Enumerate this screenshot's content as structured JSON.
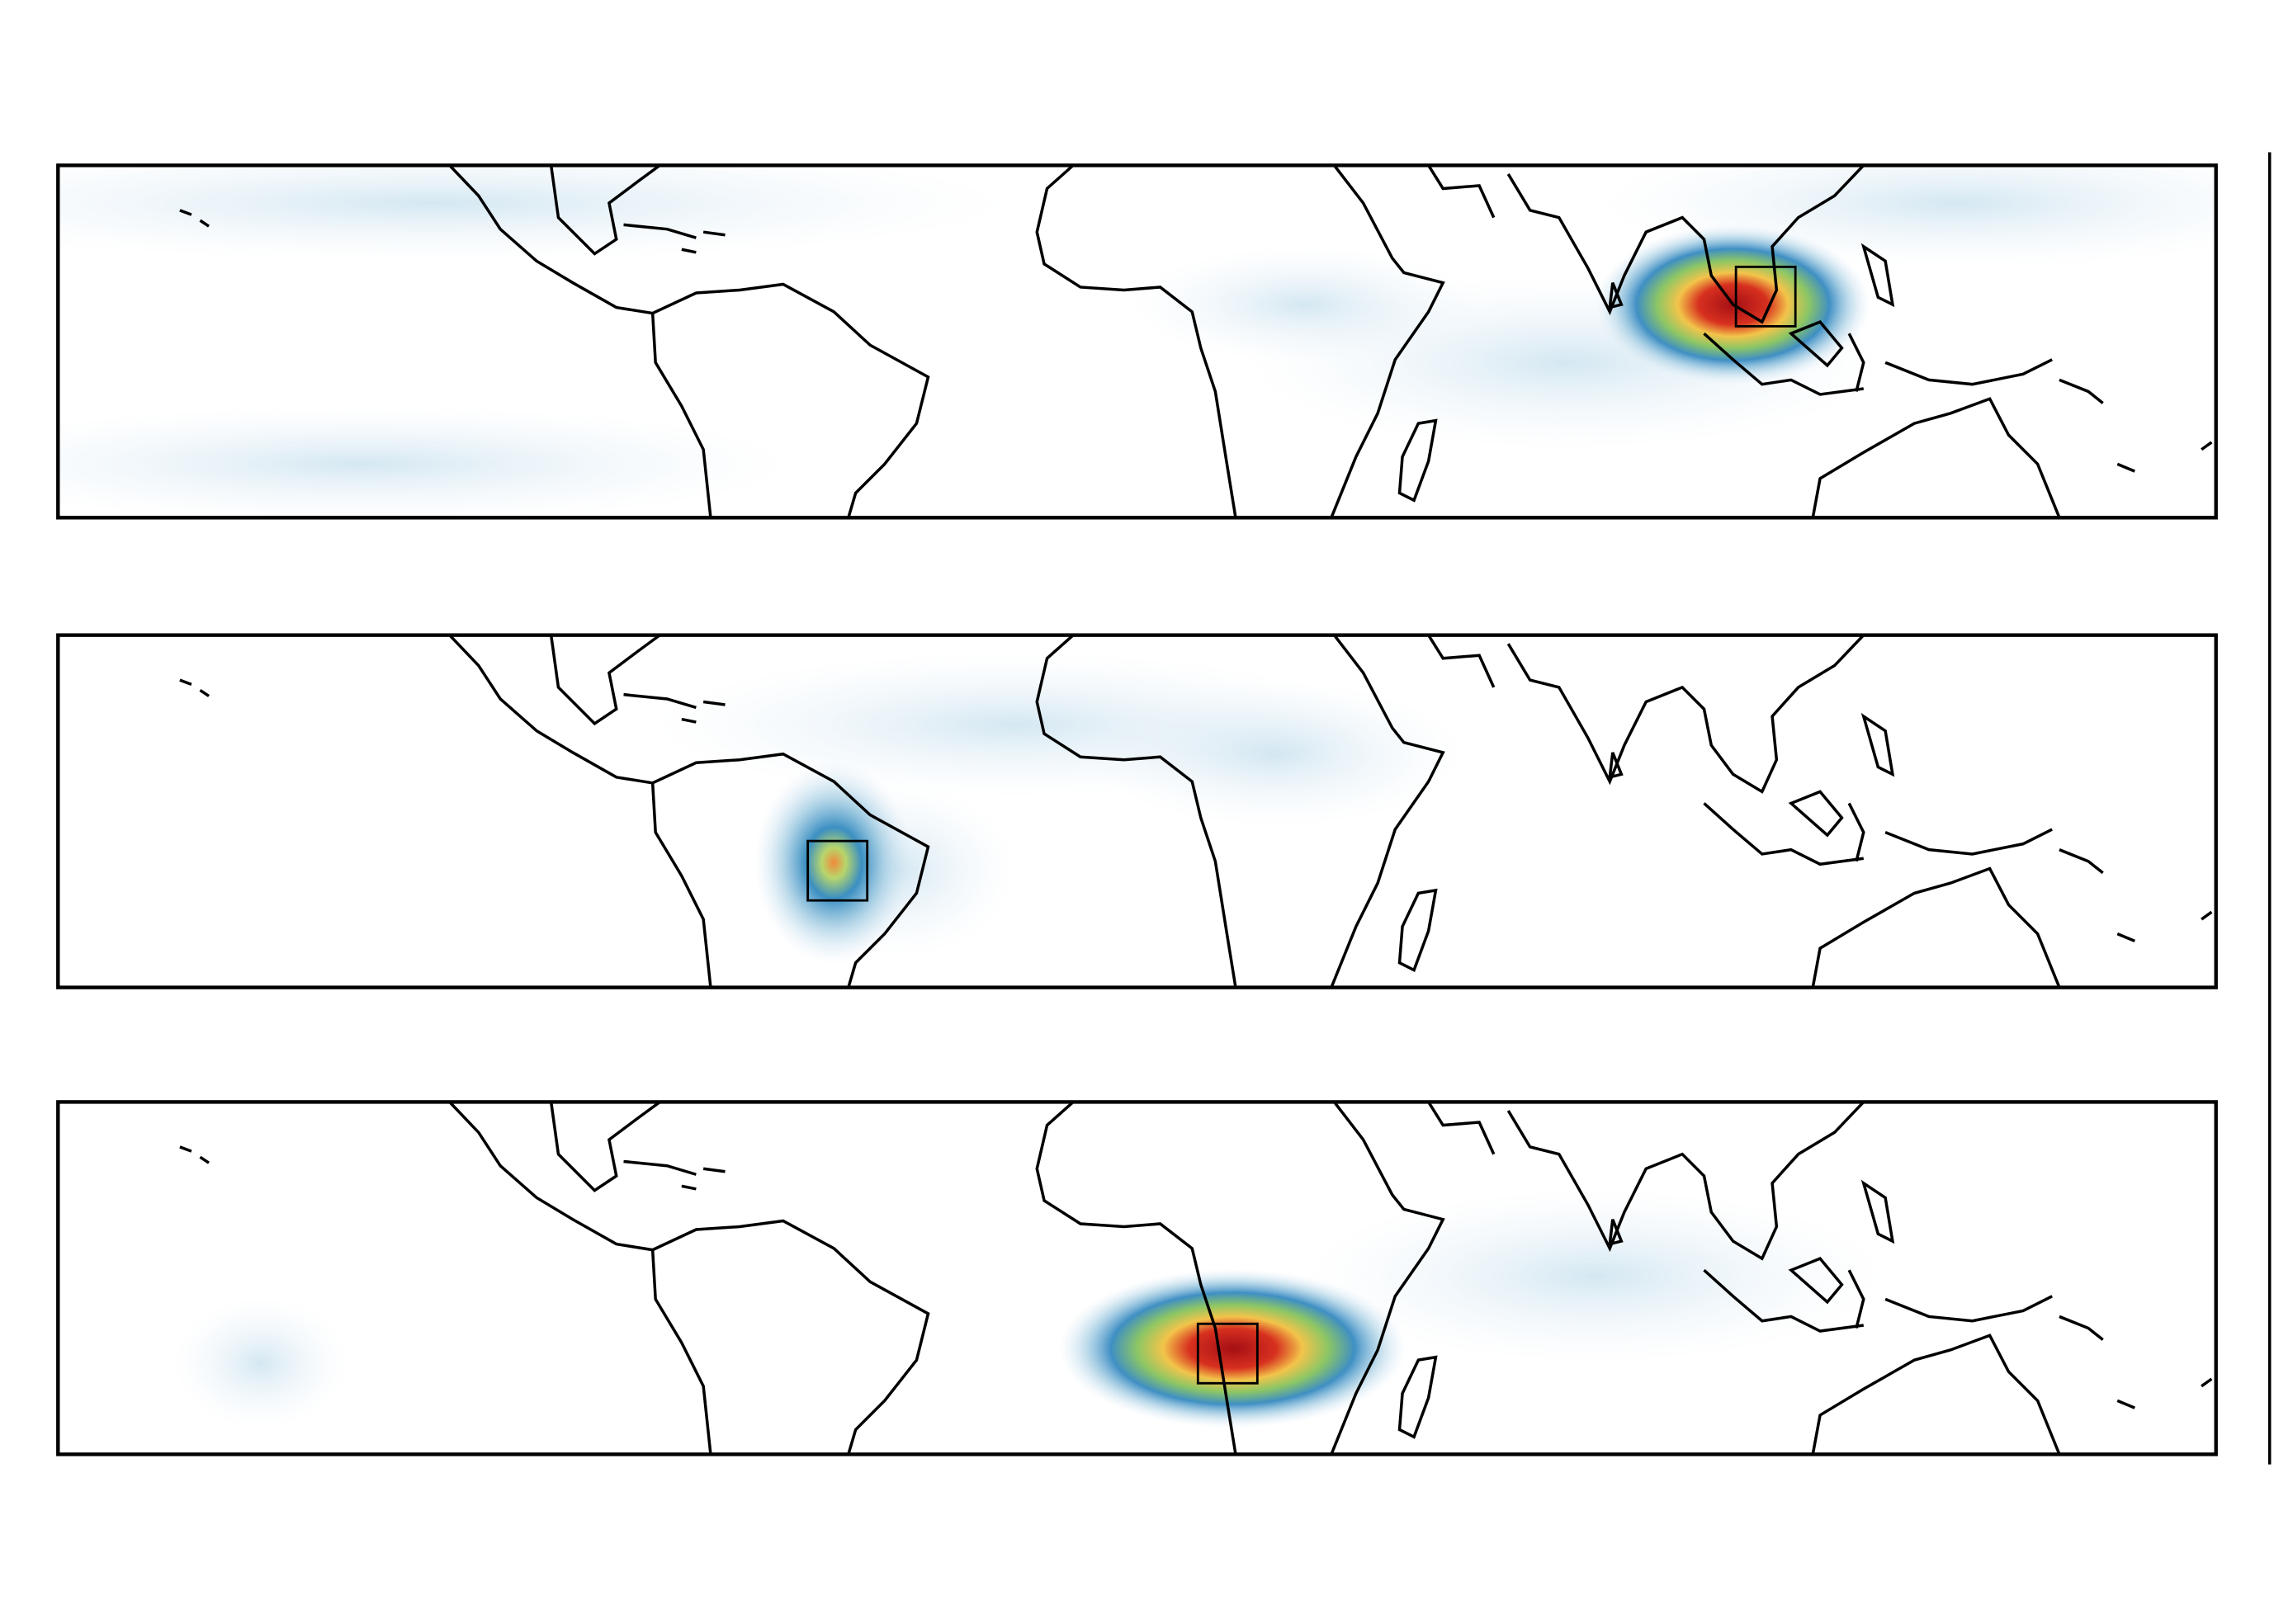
{
  "chart_data": [
    {
      "type": "map"
    },
    {
      "type": "map"
    },
    {
      "type": "map"
    }
  ]
}
